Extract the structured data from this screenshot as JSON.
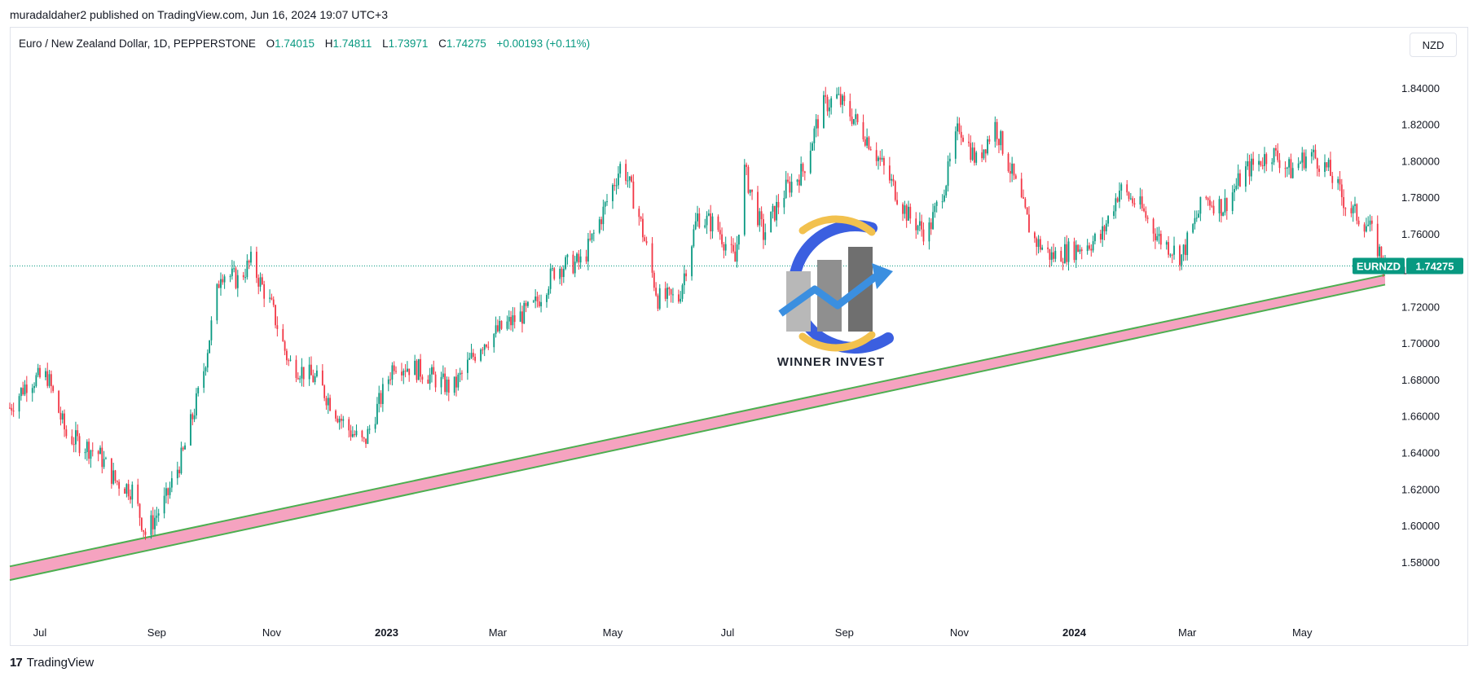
{
  "header": {
    "published_by": "muradaldaher2 published on TradingView.com, Jun 16, 2024 19:07 UTC+3"
  },
  "legend": {
    "symbol": "Euro / New Zealand Dollar, 1D, PEPPERSTONE",
    "open_label": "O",
    "open_value": "1.74015",
    "high_label": "H",
    "high_value": "1.74811",
    "low_label": "L",
    "low_value": "1.73971",
    "close_label": "C",
    "close_value": "1.74275",
    "change": "+0.00193 (+0.11%)"
  },
  "currency_button": "NZD",
  "price_badge": {
    "symbol": "EURNZD",
    "price": "1.74275"
  },
  "logo": {
    "text": "WINNER INVEST"
  },
  "footer": {
    "brand": "TradingView"
  },
  "colors": {
    "up": "#089981",
    "down": "#f23645",
    "trendline": "#4caf50",
    "channel_fill": "#f5a3c0",
    "accent": "#089981"
  },
  "chart_data": {
    "type": "candlestick",
    "title": "",
    "y_axis": {
      "ticks": [
        "1.58000",
        "1.60000",
        "1.62000",
        "1.64000",
        "1.66000",
        "1.68000",
        "1.70000",
        "1.72000",
        "1.74000",
        "1.76000",
        "1.78000",
        "1.80000",
        "1.82000",
        "1.84000"
      ],
      "ylim": [
        1.55,
        1.86
      ]
    },
    "x_axis": {
      "ticks": [
        {
          "label": "Jul",
          "date": "2022-07-01"
        },
        {
          "label": "Sep",
          "date": "2022-09-01"
        },
        {
          "label": "Nov",
          "date": "2022-11-01"
        },
        {
          "label": "2023",
          "date": "2023-01-01",
          "bold": true
        },
        {
          "label": "Mar",
          "date": "2023-03-01"
        },
        {
          "label": "May",
          "date": "2023-05-01"
        },
        {
          "label": "Jul",
          "date": "2023-07-01"
        },
        {
          "label": "Sep",
          "date": "2023-09-01"
        },
        {
          "label": "Nov",
          "date": "2023-11-01"
        },
        {
          "label": "2024",
          "date": "2024-01-01",
          "bold": true
        },
        {
          "label": "Mar",
          "date": "2024-03-01"
        },
        {
          "label": "May",
          "date": "2024-05-01"
        }
      ],
      "xlim": [
        "2022-06-15",
        "2024-06-14"
      ]
    },
    "last_price": 1.74275,
    "trend_channel": {
      "upper": [
        {
          "date": "2022-06-15",
          "price": 1.578
        },
        {
          "date": "2024-06-14",
          "price": 1.7378
        }
      ],
      "lower": [
        {
          "date": "2022-06-15",
          "price": 1.5705
        },
        {
          "date": "2024-06-14",
          "price": 1.7325
        }
      ]
    },
    "price_path": [
      {
        "date": "2022-06-15",
        "close": 1.665
      },
      {
        "date": "2022-06-25",
        "close": 1.68
      },
      {
        "date": "2022-07-05",
        "close": 1.682
      },
      {
        "date": "2022-07-15",
        "close": 1.65
      },
      {
        "date": "2022-08-01",
        "close": 1.64
      },
      {
        "date": "2022-08-10",
        "close": 1.625
      },
      {
        "date": "2022-08-19",
        "close": 1.62
      },
      {
        "date": "2022-08-26",
        "close": 1.596
      },
      {
        "date": "2022-09-06",
        "close": 1.615
      },
      {
        "date": "2022-09-15",
        "close": 1.64
      },
      {
        "date": "2022-09-25",
        "close": 1.68
      },
      {
        "date": "2022-10-05",
        "close": 1.74
      },
      {
        "date": "2022-10-14",
        "close": 1.735
      },
      {
        "date": "2022-10-21",
        "close": 1.745
      },
      {
        "date": "2022-11-01",
        "close": 1.72
      },
      {
        "date": "2022-11-10",
        "close": 1.69
      },
      {
        "date": "2022-11-25",
        "close": 1.68
      },
      {
        "date": "2022-12-10",
        "close": 1.655
      },
      {
        "date": "2022-12-20",
        "close": 1.645
      },
      {
        "date": "2023-01-05",
        "close": 1.69
      },
      {
        "date": "2023-01-20",
        "close": 1.685
      },
      {
        "date": "2023-02-05",
        "close": 1.675
      },
      {
        "date": "2023-02-20",
        "close": 1.7
      },
      {
        "date": "2023-03-05",
        "close": 1.71
      },
      {
        "date": "2023-03-20",
        "close": 1.72
      },
      {
        "date": "2023-04-01",
        "close": 1.742
      },
      {
        "date": "2023-04-15",
        "close": 1.745
      },
      {
        "date": "2023-04-25",
        "close": 1.77
      },
      {
        "date": "2023-05-06",
        "close": 1.8
      },
      {
        "date": "2023-05-15",
        "close": 1.77
      },
      {
        "date": "2023-05-25",
        "close": 1.725
      },
      {
        "date": "2023-06-05",
        "close": 1.725
      },
      {
        "date": "2023-06-15",
        "close": 1.77
      },
      {
        "date": "2023-06-25",
        "close": 1.765
      },
      {
        "date": "2023-07-05",
        "close": 1.745
      },
      {
        "date": "2023-07-10",
        "close": 1.795
      },
      {
        "date": "2023-07-20",
        "close": 1.76
      },
      {
        "date": "2023-08-01",
        "close": 1.785
      },
      {
        "date": "2023-08-10",
        "close": 1.795
      },
      {
        "date": "2023-08-20",
        "close": 1.83
      },
      {
        "date": "2023-08-28",
        "close": 1.835
      },
      {
        "date": "2023-09-05",
        "close": 1.825
      },
      {
        "date": "2023-09-15",
        "close": 1.81
      },
      {
        "date": "2023-09-25",
        "close": 1.79
      },
      {
        "date": "2023-10-05",
        "close": 1.77
      },
      {
        "date": "2023-10-15",
        "close": 1.76
      },
      {
        "date": "2023-10-25",
        "close": 1.79
      },
      {
        "date": "2023-11-01",
        "close": 1.82
      },
      {
        "date": "2023-11-10",
        "close": 1.8
      },
      {
        "date": "2023-11-20",
        "close": 1.82
      },
      {
        "date": "2023-11-30",
        "close": 1.79
      },
      {
        "date": "2023-12-10",
        "close": 1.758
      },
      {
        "date": "2023-12-20",
        "close": 1.748
      },
      {
        "date": "2024-01-01",
        "close": 1.752
      },
      {
        "date": "2024-01-15",
        "close": 1.758
      },
      {
        "date": "2024-01-25",
        "close": 1.785
      },
      {
        "date": "2024-02-05",
        "close": 1.775
      },
      {
        "date": "2024-02-15",
        "close": 1.758
      },
      {
        "date": "2024-02-27",
        "close": 1.748
      },
      {
        "date": "2024-03-10",
        "close": 1.78
      },
      {
        "date": "2024-03-20",
        "close": 1.775
      },
      {
        "date": "2024-04-01",
        "close": 1.795
      },
      {
        "date": "2024-04-15",
        "close": 1.805
      },
      {
        "date": "2024-04-25",
        "close": 1.795
      },
      {
        "date": "2024-05-05",
        "close": 1.805
      },
      {
        "date": "2024-05-15",
        "close": 1.795
      },
      {
        "date": "2024-05-25",
        "close": 1.775
      },
      {
        "date": "2024-06-05",
        "close": 1.765
      },
      {
        "date": "2024-06-14",
        "close": 1.74275
      }
    ]
  }
}
